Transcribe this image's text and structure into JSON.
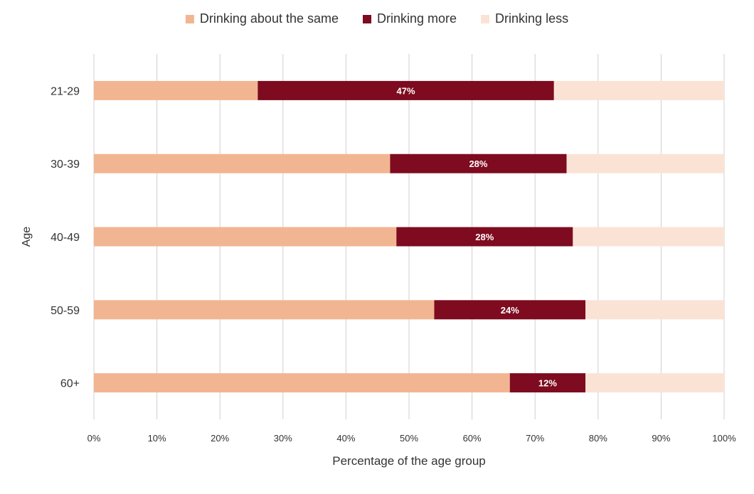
{
  "chart_data": {
    "type": "bar",
    "orientation": "horizontal",
    "stacked": true,
    "ylabel": "Age",
    "xlabel": "Percentage of the age group",
    "categories": [
      "21-29",
      "30-39",
      "40-49",
      "50-59",
      "60+"
    ],
    "series": [
      {
        "name": "Drinking about the same",
        "color": "#F2B591",
        "values": [
          26,
          47,
          48,
          54,
          66
        ],
        "show_labels": false
      },
      {
        "name": "Drinking more",
        "color": "#7E0B1F",
        "values": [
          47,
          28,
          28,
          24,
          12
        ],
        "show_labels": true,
        "labels": [
          "47%",
          "28%",
          "28%",
          "24%",
          "12%"
        ]
      },
      {
        "name": "Drinking less",
        "color": "#FAE3D5",
        "values": [
          27,
          25,
          24,
          22,
          22
        ],
        "show_labels": false
      }
    ],
    "xlim": [
      0,
      100
    ],
    "x_ticks": [
      "0%",
      "10%",
      "20%",
      "30%",
      "40%",
      "50%",
      "60%",
      "70%",
      "80%",
      "90%",
      "100%"
    ],
    "grid": true,
    "legend_position": "top"
  }
}
